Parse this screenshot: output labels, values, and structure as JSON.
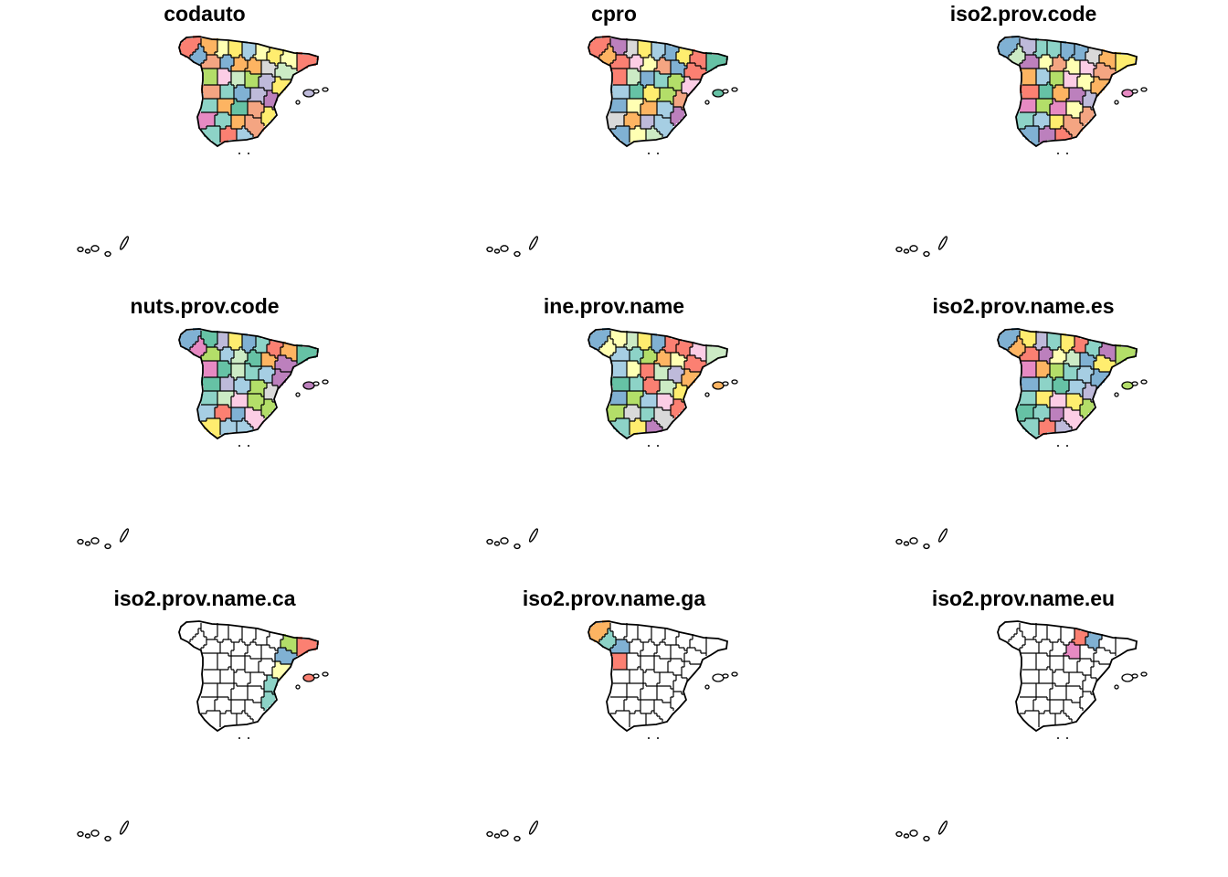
{
  "figure": {
    "panels": [
      {
        "title": "codauto",
        "fill_mode": "all",
        "seed": 11
      },
      {
        "title": "cpro",
        "fill_mode": "all",
        "seed": 23
      },
      {
        "title": "iso2.prov.code",
        "fill_mode": "all",
        "seed": 37
      },
      {
        "title": "nuts.prov.code",
        "fill_mode": "all",
        "seed": 41
      },
      {
        "title": "ine.prov.name",
        "fill_mode": "all",
        "seed": 53
      },
      {
        "title": "iso2.prov.name.es",
        "fill_mode": "all",
        "seed": 67
      },
      {
        "title": "iso2.prov.name.ca",
        "fill_mode": "catalan",
        "seed": 71
      },
      {
        "title": "iso2.prov.name.ga",
        "fill_mode": "galician",
        "seed": 83
      },
      {
        "title": "iso2.prov.name.eu",
        "fill_mode": "basque",
        "seed": 97
      }
    ],
    "palette": [
      "#8DD3C7",
      "#FFFFB3",
      "#BEBADA",
      "#FB8072",
      "#80B1D3",
      "#FDB462",
      "#B3DE69",
      "#FCCDE5",
      "#D9D9D9",
      "#BC80BD",
      "#CCEBC5",
      "#FFED6F",
      "#F4A582",
      "#A6CEE3",
      "#66C2A5",
      "#E78AC3"
    ],
    "outline_color": "#000000",
    "empty_fill": "#FFFFFF"
  }
}
